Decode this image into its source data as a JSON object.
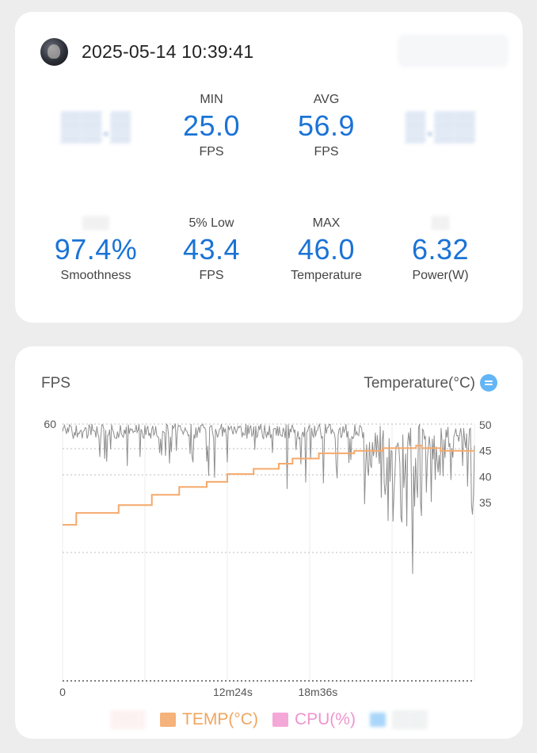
{
  "header": {
    "datetime": "2025-05-14 10:39:41"
  },
  "stats_row1": [
    {
      "label": "",
      "value": "",
      "unit": "",
      "blurred": true
    },
    {
      "label": "MIN",
      "value": "25.0",
      "unit": "FPS",
      "blurred": false
    },
    {
      "label": "AVG",
      "value": "56.9",
      "unit": "FPS",
      "blurred": false
    },
    {
      "label": "",
      "value": "",
      "unit": "",
      "blurred": true
    }
  ],
  "stats_row2": [
    {
      "label": "",
      "value": "97.4%",
      "unit": "Smoothness",
      "blurred": false
    },
    {
      "label": "5% Low",
      "value": "43.4",
      "unit": "FPS",
      "blurred": false
    },
    {
      "label": "MAX",
      "value": "46.0",
      "unit": "Temperature",
      "blurred": false
    },
    {
      "label": "",
      "value": "6.32",
      "unit": "Power(W)",
      "blurred": false
    }
  ],
  "chart_card": {
    "left_title": "FPS",
    "right_title": "Temperature(°C)",
    "switch_icon": "swap-icon"
  },
  "legend": [
    {
      "label": "TEMP(°C)",
      "color": "#f5b27a"
    },
    {
      "label": "CPU(%)",
      "color": "#f4a8d8"
    }
  ],
  "chart_data": {
    "type": "line",
    "x_tick_labels": [
      "0",
      "12m24s",
      "18m36s"
    ],
    "x_ticks_seconds": [
      0,
      744,
      1116
    ],
    "x_range_seconds": [
      0,
      1800
    ],
    "y_left": {
      "label": "FPS",
      "ticks": [
        60
      ]
    },
    "y_right": {
      "label": "Temperature(°C)",
      "ticks": [
        50,
        45,
        40,
        35
      ]
    },
    "series": [
      {
        "name": "TEMP(°C)",
        "color": "#f5a96b",
        "axis": "right",
        "points": [
          [
            0,
            30.7
          ],
          [
            60,
            30.7
          ],
          [
            60,
            33
          ],
          [
            245,
            33
          ],
          [
            245,
            34.5
          ],
          [
            390,
            34.5
          ],
          [
            390,
            36.5
          ],
          [
            510,
            36.5
          ],
          [
            510,
            38
          ],
          [
            630,
            38
          ],
          [
            630,
            39
          ],
          [
            720,
            39
          ],
          [
            720,
            40.5
          ],
          [
            835,
            40.5
          ],
          [
            835,
            41.5
          ],
          [
            945,
            41.5
          ],
          [
            945,
            42.5
          ],
          [
            1005,
            42.5
          ],
          [
            1005,
            43.5
          ],
          [
            1120,
            43.5
          ],
          [
            1120,
            44.5
          ],
          [
            1275,
            44.5
          ],
          [
            1275,
            45
          ],
          [
            1400,
            45
          ],
          [
            1400,
            45.5
          ],
          [
            1545,
            45.5
          ],
          [
            1545,
            46
          ],
          [
            1570,
            46
          ],
          [
            1570,
            45.5
          ],
          [
            1652,
            45.5
          ],
          [
            1652,
            45
          ],
          [
            1800,
            45
          ]
        ]
      },
      {
        "name": "FPS",
        "color": "#8c8c8c",
        "axis": "left",
        "summary": {
          "min": 25.0,
          "avg": 56.9,
          "max": 60
        }
      }
    ]
  }
}
